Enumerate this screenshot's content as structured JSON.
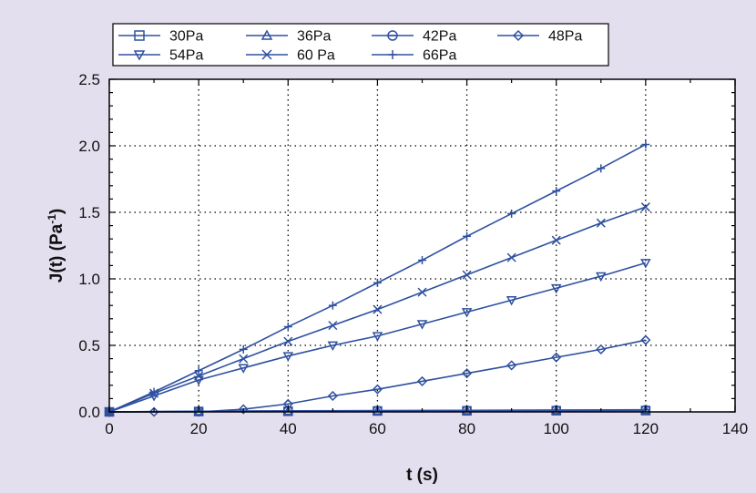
{
  "chart_data": {
    "type": "scatter",
    "title": "",
    "xlabel": "t (s)",
    "ylabel": "J(t) (Pa",
    "ylabel_sup": "-1",
    "ylabel_close": ")",
    "xlim": [
      0,
      140
    ],
    "ylim": [
      0,
      2.5
    ],
    "xticks": [
      0,
      20,
      40,
      60,
      80,
      100,
      120,
      140
    ],
    "yticks": [
      0.0,
      0.5,
      1.0,
      1.5,
      2.0,
      2.5
    ],
    "xtick_labels": [
      "0",
      "20",
      "40",
      "60",
      "80",
      "100",
      "120",
      "140"
    ],
    "ytick_labels": [
      "0.0",
      "0.5",
      "1.0",
      "1.5",
      "2.0",
      "2.5"
    ],
    "grid": true,
    "legend_position": "top",
    "series_color": "#2e50a0",
    "series": [
      {
        "name": "30Pa",
        "marker": "square",
        "x": [
          0,
          20,
          40,
          60,
          80,
          100,
          120
        ],
        "y": [
          0.0,
          0.003,
          0.005,
          0.007,
          0.008,
          0.009,
          0.01
        ]
      },
      {
        "name": "36Pa",
        "marker": "triangle-up",
        "x": [
          0,
          20,
          40,
          60,
          80,
          100,
          120
        ],
        "y": [
          0.0,
          0.004,
          0.006,
          0.008,
          0.01,
          0.012,
          0.013
        ]
      },
      {
        "name": "42Pa",
        "marker": "circle-bar",
        "x": [
          0,
          20,
          40,
          60,
          80,
          100,
          120
        ],
        "y": [
          0.0,
          0.005,
          0.008,
          0.01,
          0.012,
          0.014,
          0.016
        ]
      },
      {
        "name": "48Pa",
        "marker": "diamond",
        "x": [
          0,
          10,
          20,
          30,
          40,
          50,
          60,
          70,
          80,
          90,
          100,
          110,
          120
        ],
        "y": [
          0.0,
          0.0,
          0.0,
          0.02,
          0.06,
          0.12,
          0.17,
          0.23,
          0.29,
          0.35,
          0.41,
          0.47,
          0.54
        ]
      },
      {
        "name": "54Pa",
        "marker": "triangle-down",
        "x": [
          0,
          10,
          20,
          30,
          40,
          50,
          60,
          70,
          80,
          90,
          100,
          110,
          120
        ],
        "y": [
          0.0,
          0.12,
          0.24,
          0.33,
          0.42,
          0.5,
          0.57,
          0.66,
          0.75,
          0.84,
          0.93,
          1.02,
          1.12
        ]
      },
      {
        "name": "60 Pa",
        "marker": "x",
        "x": [
          0,
          10,
          20,
          30,
          40,
          50,
          60,
          70,
          80,
          90,
          100,
          110,
          120
        ],
        "y": [
          0.0,
          0.14,
          0.27,
          0.4,
          0.53,
          0.65,
          0.77,
          0.9,
          1.03,
          1.16,
          1.29,
          1.42,
          1.54
        ]
      },
      {
        "name": "66Pa",
        "marker": "plus",
        "x": [
          0,
          10,
          20,
          30,
          40,
          50,
          60,
          70,
          80,
          90,
          100,
          110,
          120
        ],
        "y": [
          0.0,
          0.15,
          0.31,
          0.47,
          0.64,
          0.8,
          0.97,
          1.14,
          1.32,
          1.49,
          1.66,
          1.83,
          2.01
        ]
      }
    ]
  }
}
